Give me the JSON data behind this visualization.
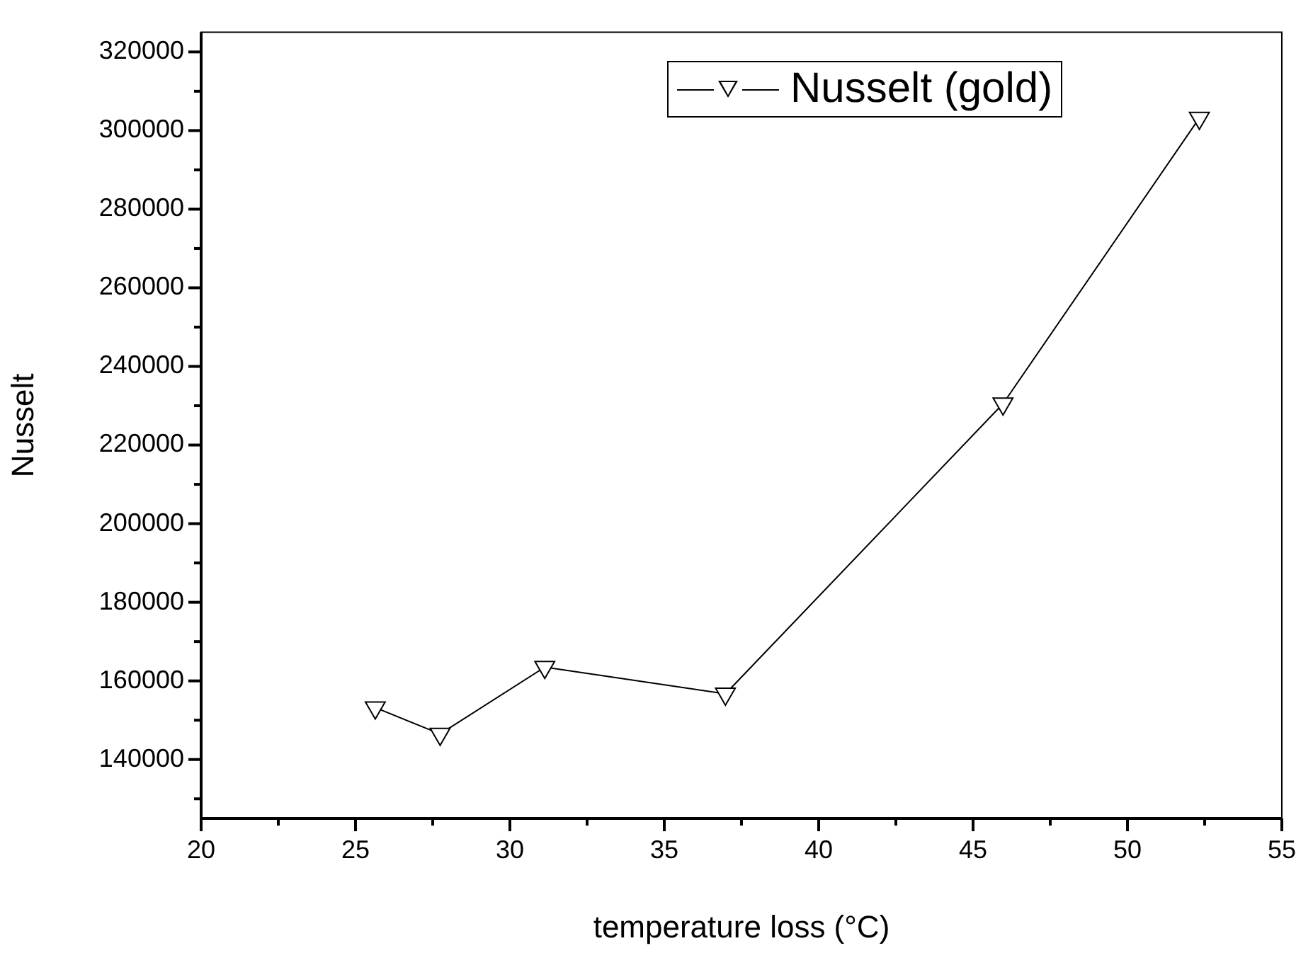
{
  "chart_data": {
    "type": "line",
    "xlabel": "temperature loss (°C)",
    "ylabel": "Nusselt",
    "x": [
      25.64,
      27.74,
      31.13,
      36.98,
      45.97,
      52.33
    ],
    "series": [
      {
        "name": "Nusselt (gold)",
        "color": "#000000",
        "values": [
          153200,
          146500,
          163500,
          156700,
          230500,
          303200
        ]
      }
    ],
    "xlim": [
      20,
      55
    ],
    "xticks": [
      20,
      {
        "value": 22.5,
        "label": null
      },
      25,
      {
        "value": 27.5,
        "label": null
      },
      30,
      {
        "value": 32.5,
        "label": null
      },
      35,
      {
        "value": 37.5,
        "label": null
      },
      40,
      {
        "value": 42.5,
        "label": null
      },
      45,
      {
        "value": 47.5,
        "label": null
      },
      50,
      {
        "value": 52.5,
        "label": null
      },
      55
    ],
    "ylim": [
      125000,
      325000
    ],
    "yticks": [
      {
        "value": 130000,
        "label": null
      },
      140000,
      {
        "value": 150000,
        "label": null
      },
      160000,
      {
        "value": 170000,
        "label": null
      },
      180000,
      {
        "value": 190000,
        "label": null
      },
      200000,
      {
        "value": 210000,
        "label": null
      },
      220000,
      {
        "value": 230000,
        "label": null
      },
      240000,
      {
        "value": 250000,
        "label": null
      },
      260000,
      {
        "value": 270000,
        "label": null
      },
      280000,
      {
        "value": 290000,
        "label": null
      },
      300000,
      {
        "value": 310000,
        "label": null
      },
      320000
    ],
    "marker": "triangle",
    "line_style": "solid",
    "legend": "top right",
    "grid": false
  }
}
